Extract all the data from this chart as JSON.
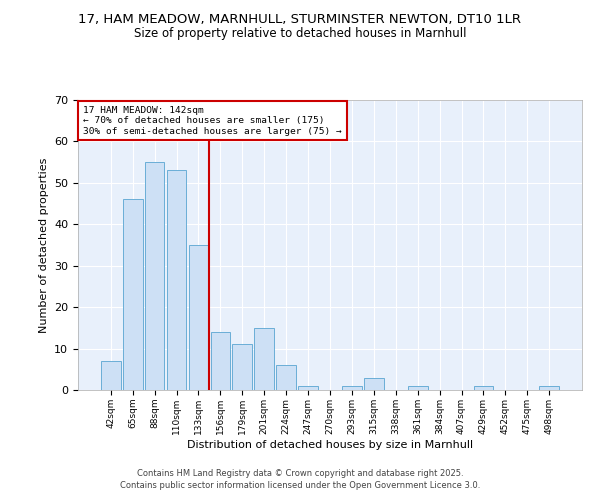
{
  "title1": "17, HAM MEADOW, MARNHULL, STURMINSTER NEWTON, DT10 1LR",
  "title2": "Size of property relative to detached houses in Marnhull",
  "xlabel": "Distribution of detached houses by size in Marnhull",
  "ylabel": "Number of detached properties",
  "bar_labels": [
    "42sqm",
    "65sqm",
    "88sqm",
    "110sqm",
    "133sqm",
    "156sqm",
    "179sqm",
    "201sqm",
    "224sqm",
    "247sqm",
    "270sqm",
    "293sqm",
    "315sqm",
    "338sqm",
    "361sqm",
    "384sqm",
    "407sqm",
    "429sqm",
    "452sqm",
    "475sqm",
    "498sqm"
  ],
  "bar_values": [
    7,
    46,
    55,
    53,
    35,
    14,
    11,
    15,
    6,
    1,
    0,
    1,
    3,
    0,
    1,
    0,
    0,
    1,
    0,
    0,
    1
  ],
  "bar_color": "#cde0f5",
  "bar_edge_color": "#6aaed6",
  "vline_color": "#cc0000",
  "annotation_text": "17 HAM MEADOW: 142sqm\n← 70% of detached houses are smaller (175)\n30% of semi-detached houses are larger (75) →",
  "annotation_box_color": "#cc0000",
  "ylim": [
    0,
    70
  ],
  "yticks": [
    0,
    10,
    20,
    30,
    40,
    50,
    60,
    70
  ],
  "bg_color": "#e8f0fb",
  "footer1": "Contains HM Land Registry data © Crown copyright and database right 2025.",
  "footer2": "Contains public sector information licensed under the Open Government Licence 3.0.",
  "title_fontsize": 9.5,
  "subtitle_fontsize": 8.5
}
